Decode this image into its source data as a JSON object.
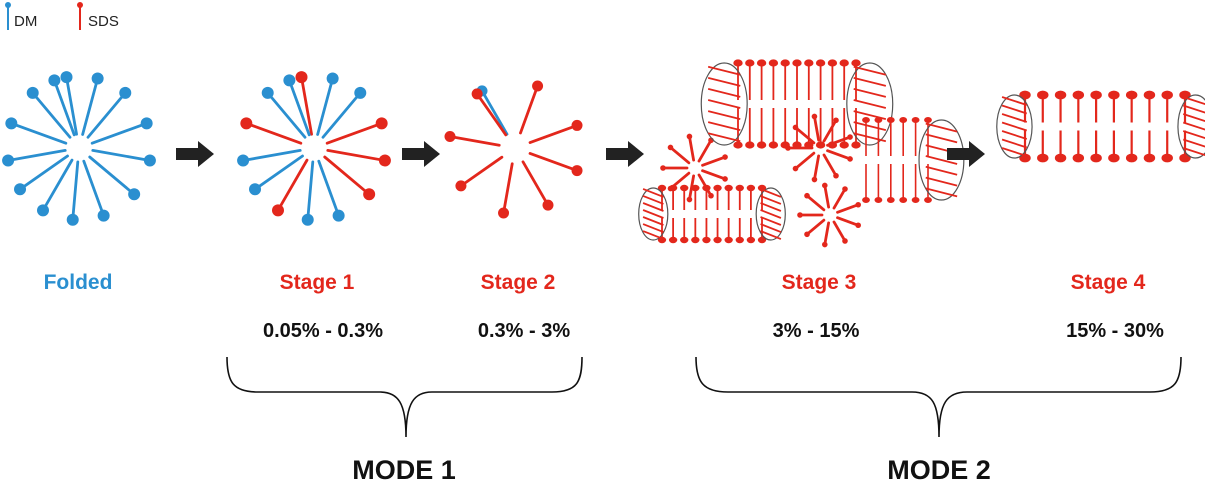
{
  "colors": {
    "dm": "#2a8fd0",
    "sds": "#e3271c",
    "text": "#111111",
    "arrow": "#222222"
  },
  "legend": {
    "dm": "DM",
    "sds": "SDS"
  },
  "stages": [
    {
      "name": "Folded",
      "concentration": "",
      "color": "#2a8fd0"
    },
    {
      "name": "Stage 1",
      "concentration": "0.05% - 0.3%",
      "color": "#e3271c"
    },
    {
      "name": "Stage 2",
      "concentration": "0.3% - 3%",
      "color": "#e3271c"
    },
    {
      "name": "Stage 3",
      "concentration": "3% - 15%",
      "color": "#e3271c"
    },
    {
      "name": "Stage 4",
      "concentration": "15% - 30%",
      "color": "#e3271c"
    }
  ],
  "modes": [
    {
      "label": "MODE 1"
    },
    {
      "label": "MODE 2"
    }
  ]
}
